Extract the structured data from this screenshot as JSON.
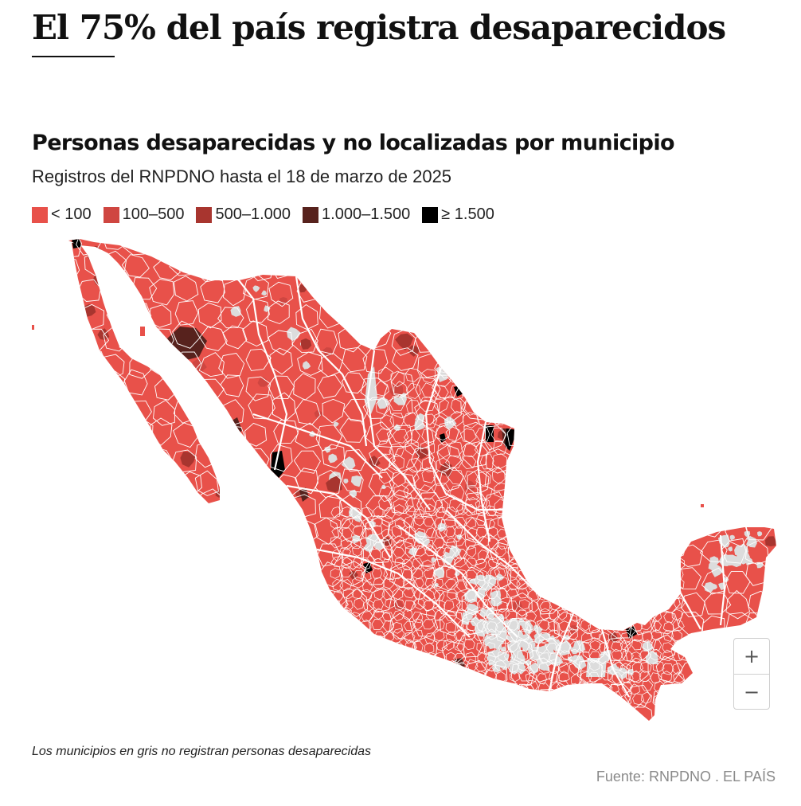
{
  "headline": "El 75% del país registra desaparecidos",
  "chart": {
    "title": "Personas desaparecidas y no localizadas por municipio",
    "subtitle": "Registros del RNPDNO hasta el 18 de marzo de 2025"
  },
  "legend": [
    {
      "label": "< 100",
      "color": "#e8514a"
    },
    {
      "label": "100–500",
      "color": "#cf4641"
    },
    {
      "label": "500–1.000",
      "color": "#a8352f"
    },
    {
      "label": "1.000–1.500",
      "color": "#57221d"
    },
    {
      "label": "≥ 1.500",
      "color": "#000000"
    }
  ],
  "no_data_color": "#dcdcdc",
  "map_controls": {
    "zoom_in": "+",
    "zoom_out": "−"
  },
  "note": "Los municipios en gris no registran personas desaparecidas",
  "source": "Fuente: RNPDNO . EL PAÍS"
}
